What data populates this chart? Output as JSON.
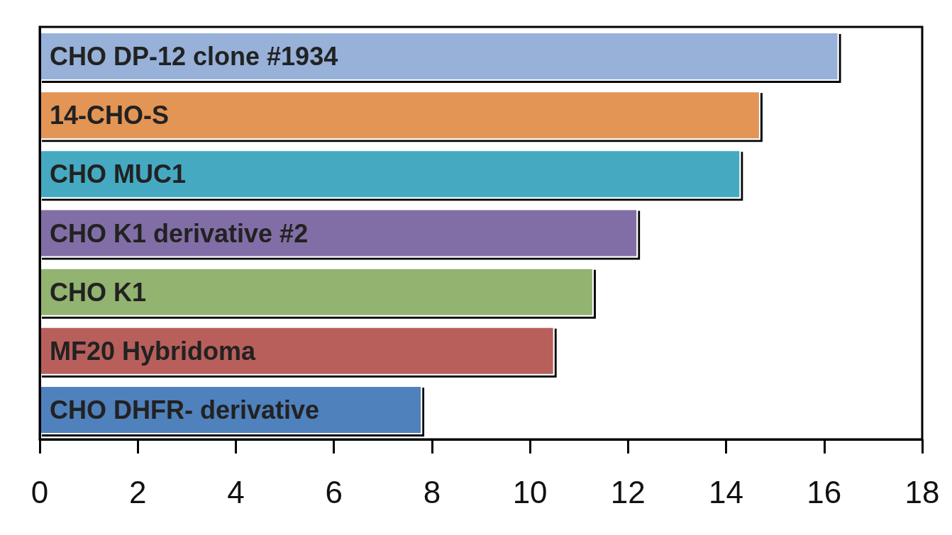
{
  "chart_data": {
    "type": "bar",
    "orientation": "horizontal",
    "categories": [
      "CHO DP-12 clone #1934",
      "14-CHO-S",
      "CHO MUC1",
      "CHO K1 derivative #2",
      "CHO K1",
      "MF20 Hybridoma",
      "CHO DHFR- derivative"
    ],
    "values": [
      16.3,
      14.7,
      14.3,
      12.2,
      11.3,
      10.5,
      7.8
    ],
    "colors": [
      "#97b1d9",
      "#e39555",
      "#45a9c2",
      "#826ea6",
      "#93b36f",
      "#b85f5c",
      "#4f81bc"
    ],
    "xlim": [
      0,
      18
    ],
    "xticks": [
      0,
      2,
      4,
      6,
      8,
      10,
      12,
      14,
      16,
      18
    ],
    "grid": false
  }
}
